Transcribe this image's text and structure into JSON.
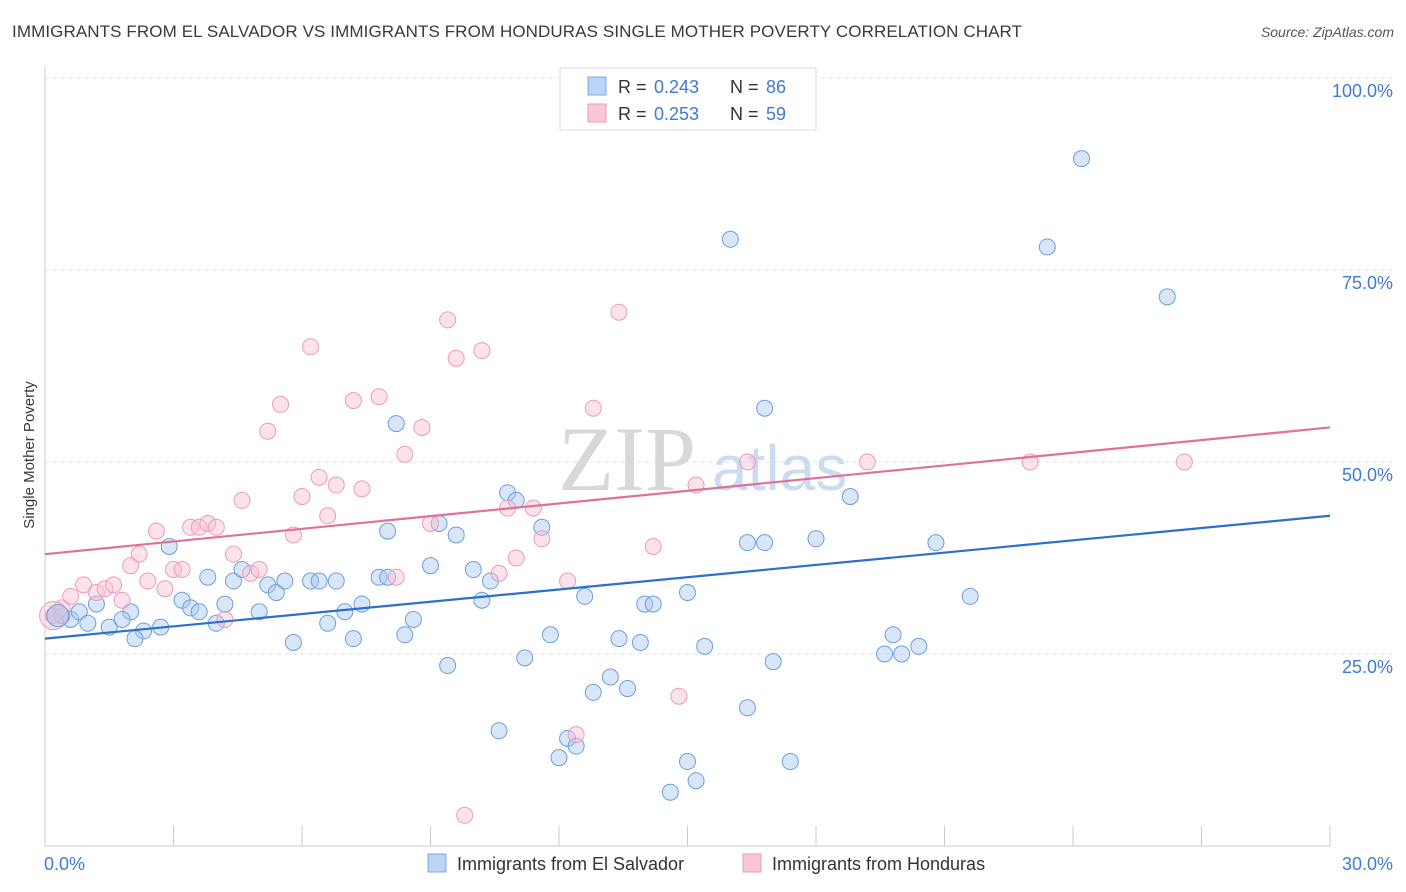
{
  "title": "IMMIGRANTS FROM EL SALVADOR VS IMMIGRANTS FROM HONDURAS SINGLE MOTHER POVERTY CORRELATION CHART",
  "source": "Source: ZipAtlas.com",
  "watermark": {
    "zip": "ZIP",
    "atlas": "atlas"
  },
  "legend_top": [
    {
      "r_label": "R = ",
      "r_value": "0.243",
      "n_label": "N = ",
      "n_value": "86"
    },
    {
      "r_label": "R = ",
      "r_value": "0.253",
      "n_label": "N = ",
      "n_value": "59"
    }
  ],
  "chart_data": {
    "type": "scatter",
    "title": "IMMIGRANTS FROM EL SALVADOR VS IMMIGRANTS FROM HONDURAS SINGLE MOTHER POVERTY CORRELATION CHART",
    "xlabel": "",
    "ylabel": "Single Mother Poverty",
    "xlim": [
      0,
      30
    ],
    "ylim": [
      0,
      100
    ],
    "x_tick_labels": [
      "0.0%",
      "30.0%"
    ],
    "y_tick_labels": [
      "25.0%",
      "50.0%",
      "75.0%",
      "100.0%"
    ],
    "y_ticks": [
      25,
      50,
      75,
      100
    ],
    "grid": true,
    "legend_position": "bottom",
    "colors": {
      "el_salvador": "#6a9fe0",
      "honduras": "#f29ab8",
      "el_salvador_line": "#2b6fd0",
      "honduras_line": "#e0709a",
      "tick_text": "#3d7bd6"
    },
    "series": [
      {
        "name": "Immigrants from El Salvador",
        "r": 0.243,
        "n": 86,
        "trend": {
          "x": [
            0,
            30
          ],
          "y": [
            27,
            43
          ]
        },
        "points": [
          [
            0.2,
            30
          ],
          [
            0.4,
            30
          ],
          [
            0.6,
            29.5
          ],
          [
            0.8,
            30.5
          ],
          [
            1.0,
            29
          ],
          [
            1.2,
            31.5
          ],
          [
            1.5,
            28.5
          ],
          [
            2.0,
            30.5
          ],
          [
            1.8,
            29.5
          ],
          [
            2.3,
            28
          ],
          [
            2.1,
            27
          ],
          [
            2.7,
            28.5
          ],
          [
            2.9,
            39
          ],
          [
            3.2,
            32
          ],
          [
            3.4,
            31
          ],
          [
            3.6,
            30.5
          ],
          [
            3.8,
            35
          ],
          [
            4.0,
            29
          ],
          [
            4.2,
            31.5
          ],
          [
            4.4,
            34.5
          ],
          [
            4.6,
            36
          ],
          [
            5.0,
            30.5
          ],
          [
            5.2,
            34
          ],
          [
            5.4,
            33
          ],
          [
            5.6,
            34.5
          ],
          [
            5.8,
            26.5
          ],
          [
            6.2,
            34.5
          ],
          [
            6.4,
            34.5
          ],
          [
            6.6,
            29
          ],
          [
            6.8,
            34.5
          ],
          [
            7.0,
            30.5
          ],
          [
            7.2,
            27
          ],
          [
            7.4,
            31.5
          ],
          [
            7.8,
            35
          ],
          [
            8.0,
            35
          ],
          [
            8.0,
            41
          ],
          [
            8.2,
            55
          ],
          [
            8.4,
            27.5
          ],
          [
            8.6,
            29.5
          ],
          [
            9.0,
            36.5
          ],
          [
            9.2,
            42
          ],
          [
            9.4,
            23.5
          ],
          [
            9.6,
            40.5
          ],
          [
            10.0,
            36
          ],
          [
            10.2,
            32
          ],
          [
            10.4,
            34.5
          ],
          [
            10.6,
            15
          ],
          [
            10.8,
            46
          ],
          [
            11.0,
            45
          ],
          [
            11.2,
            24.5
          ],
          [
            11.6,
            41.5
          ],
          [
            11.8,
            27.5
          ],
          [
            12.0,
            11.5
          ],
          [
            12.2,
            14
          ],
          [
            12.4,
            13
          ],
          [
            12.6,
            32.5
          ],
          [
            12.8,
            20
          ],
          [
            13.2,
            22
          ],
          [
            13.4,
            27
          ],
          [
            13.6,
            20.5
          ],
          [
            13.9,
            26.5
          ],
          [
            14.0,
            31.5
          ],
          [
            14.2,
            31.5
          ],
          [
            14.6,
            7
          ],
          [
            15.0,
            33
          ],
          [
            15.0,
            11
          ],
          [
            15.2,
            8.5
          ],
          [
            15.4,
            26
          ],
          [
            16.0,
            79
          ],
          [
            16.4,
            18
          ],
          [
            16.4,
            39.5
          ],
          [
            16.8,
            57
          ],
          [
            16.8,
            39.5
          ],
          [
            17.0,
            24
          ],
          [
            17.4,
            11
          ],
          [
            18.0,
            40
          ],
          [
            18.8,
            45.5
          ],
          [
            19.6,
            25
          ],
          [
            19.8,
            27.5
          ],
          [
            20.0,
            25
          ],
          [
            20.4,
            26
          ],
          [
            20.8,
            39.5
          ],
          [
            21.6,
            32.5
          ],
          [
            23.4,
            78
          ],
          [
            24.2,
            89.5
          ],
          [
            26.2,
            71.5
          ]
        ]
      },
      {
        "name": "Immigrants from Honduras",
        "r": 0.253,
        "n": 59,
        "trend": {
          "x": [
            0,
            30
          ],
          "y": [
            38,
            54.5
          ]
        },
        "points": [
          [
            0.2,
            30
          ],
          [
            0.4,
            31
          ],
          [
            0.6,
            32.5
          ],
          [
            0.9,
            34
          ],
          [
            1.2,
            33
          ],
          [
            1.4,
            33.5
          ],
          [
            1.6,
            34
          ],
          [
            1.8,
            32
          ],
          [
            2.0,
            36.5
          ],
          [
            2.2,
            38
          ],
          [
            2.4,
            34.5
          ],
          [
            2.6,
            41
          ],
          [
            2.8,
            33.5
          ],
          [
            3.0,
            36
          ],
          [
            3.2,
            36
          ],
          [
            3.4,
            41.5
          ],
          [
            3.6,
            41.5
          ],
          [
            3.8,
            42
          ],
          [
            4.0,
            41.5
          ],
          [
            4.2,
            29.5
          ],
          [
            4.4,
            38
          ],
          [
            4.6,
            45
          ],
          [
            4.8,
            35.5
          ],
          [
            5.0,
            36
          ],
          [
            5.2,
            54
          ],
          [
            5.5,
            57.5
          ],
          [
            5.8,
            40.5
          ],
          [
            6.0,
            45.5
          ],
          [
            6.2,
            65
          ],
          [
            6.4,
            48
          ],
          [
            6.6,
            43
          ],
          [
            6.8,
            47
          ],
          [
            7.2,
            58
          ],
          [
            7.4,
            46.5
          ],
          [
            7.8,
            58.5
          ],
          [
            8.2,
            35
          ],
          [
            8.4,
            51
          ],
          [
            8.8,
            54.5
          ],
          [
            9.0,
            42
          ],
          [
            9.4,
            68.5
          ],
          [
            9.6,
            63.5
          ],
          [
            9.8,
            4
          ],
          [
            10.2,
            64.5
          ],
          [
            10.6,
            35.5
          ],
          [
            10.8,
            44
          ],
          [
            11.0,
            37.5
          ],
          [
            11.4,
            44
          ],
          [
            11.6,
            40
          ],
          [
            12.2,
            34.5
          ],
          [
            12.4,
            14.5
          ],
          [
            12.8,
            57
          ],
          [
            13.4,
            69.5
          ],
          [
            14.2,
            39
          ],
          [
            14.8,
            19.5
          ],
          [
            15.2,
            47
          ],
          [
            16.4,
            50
          ],
          [
            19.2,
            50
          ],
          [
            23.0,
            50
          ],
          [
            26.6,
            50
          ]
        ]
      }
    ]
  }
}
